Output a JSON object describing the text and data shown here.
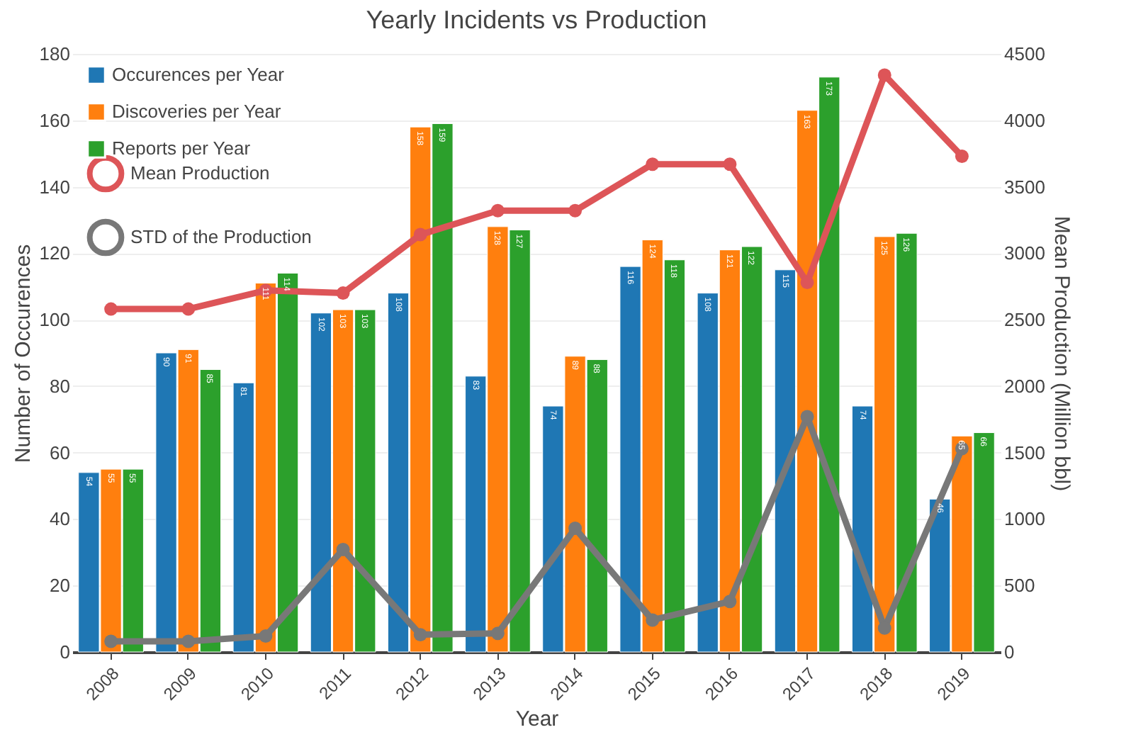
{
  "chart_data": {
    "type": "bar",
    "title": "Yearly Incidents vs Production",
    "xlabel": "Year",
    "ylabel": "Number of Occurences",
    "y2label": "Mean Production (Million bbl)",
    "categories": [
      "2008",
      "2009",
      "2010",
      "2011",
      "2012",
      "2013",
      "2014",
      "2015",
      "2016",
      "2017",
      "2018",
      "2019"
    ],
    "series": [
      {
        "name": "Occurences per Year",
        "color": "#1f77b4",
        "values": [
          54,
          90,
          81,
          102,
          108,
          83,
          74,
          116,
          108,
          115,
          74,
          46
        ],
        "value_labels": [
          "54",
          "90",
          "81",
          "102",
          "108",
          "83",
          "74",
          "116",
          "108",
          "115",
          "74",
          "46"
        ]
      },
      {
        "name": "Discoveries per Year",
        "color": "#ff7f0e",
        "values": [
          55,
          91,
          111,
          103,
          158,
          128,
          89,
          124,
          121,
          163,
          125,
          65
        ],
        "value_labels": [
          "55",
          "91",
          "111",
          "103",
          "158",
          "128",
          "89",
          "124",
          "121",
          "163",
          "125",
          "65"
        ]
      },
      {
        "name": "Reports per Year",
        "color": "#2ca02c",
        "values": [
          55,
          85,
          114,
          103,
          159,
          127,
          88,
          118,
          122,
          173,
          126,
          66
        ],
        "value_labels": [
          "55",
          "85",
          "114",
          "103",
          "159",
          "127",
          "88",
          "118",
          "122",
          "173",
          "126",
          "66"
        ]
      },
      {
        "name": "Mean Production",
        "type": "line",
        "axis": "y2",
        "color": "#dd5558",
        "marker": "circle",
        "values": [
          2580,
          2580,
          2720,
          2700,
          3140,
          3320,
          3320,
          3670,
          3670,
          2780,
          4340,
          3730
        ]
      },
      {
        "name": "STD of the Production",
        "type": "line",
        "axis": "y2",
        "color": "#787878",
        "marker": "circle",
        "values": [
          80,
          80,
          120,
          770,
          130,
          140,
          930,
          240,
          380,
          1770,
          180,
          1530
        ]
      }
    ],
    "ylim": [
      0,
      180
    ],
    "yticks": [
      0,
      20,
      40,
      60,
      80,
      100,
      120,
      140,
      160,
      180
    ],
    "y2lim": [
      0,
      4500
    ],
    "y2ticks": [
      0,
      500,
      1000,
      1500,
      2000,
      2500,
      3000,
      3500,
      4000,
      4500
    ],
    "grid": "y",
    "legend": "top left"
  }
}
